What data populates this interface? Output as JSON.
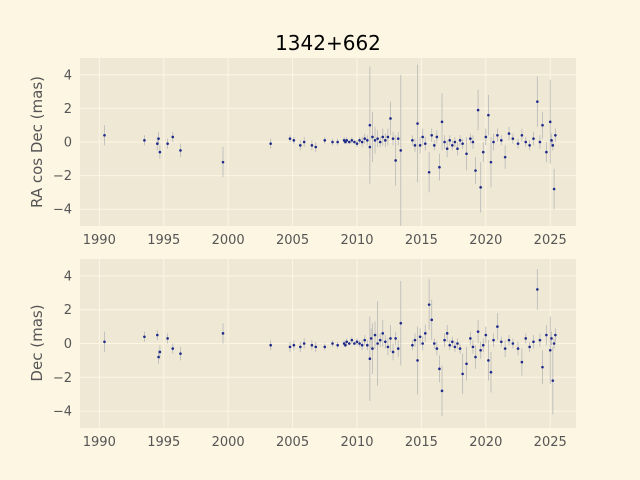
{
  "chart_data": [
    {
      "type": "scatter",
      "title": "1342+662",
      "xlabel": "",
      "ylabel": "RA cos Dec (mas)",
      "xlim": [
        1988.5,
        2027
      ],
      "ylim": [
        -5,
        5
      ],
      "xticks": [
        1990,
        1995,
        2000,
        2005,
        2010,
        2015,
        2020,
        2025
      ],
      "yticks": [
        -4,
        -2,
        0,
        2,
        4
      ],
      "grid": true,
      "marker_color": "#1f2a8a",
      "errorbar_color": "#b8b8b8",
      "series": [
        {
          "points": [
            [
              1990.4,
              0.4,
              0.6
            ],
            [
              1993.5,
              0.1,
              0.3
            ],
            [
              1994.5,
              -0.1,
              0.4
            ],
            [
              1994.6,
              0.2,
              0.4
            ],
            [
              1994.7,
              -0.6,
              0.4
            ],
            [
              1995.3,
              -0.1,
              0.3
            ],
            [
              1995.7,
              0.3,
              0.3
            ],
            [
              1996.3,
              -0.5,
              0.4
            ],
            [
              1999.6,
              -1.2,
              0.9
            ],
            [
              2003.3,
              -0.1,
              0.3
            ],
            [
              2004.8,
              0.2,
              0.2
            ],
            [
              2005.1,
              0.1,
              0.2
            ],
            [
              2005.6,
              -0.2,
              0.3
            ],
            [
              2005.9,
              0.0,
              0.3
            ],
            [
              2006.5,
              -0.2,
              0.3
            ],
            [
              2006.8,
              -0.3,
              0.3
            ],
            [
              2007.5,
              0.1,
              0.2
            ],
            [
              2008.1,
              0.0,
              0.2
            ],
            [
              2008.5,
              0.0,
              0.2
            ],
            [
              2009.0,
              0.1,
              0.2
            ],
            [
              2009.1,
              0.0,
              0.1
            ],
            [
              2009.2,
              0.1,
              0.2
            ],
            [
              2009.4,
              0.0,
              0.1
            ],
            [
              2009.6,
              0.1,
              0.2
            ],
            [
              2009.8,
              0.0,
              0.1
            ],
            [
              2010.0,
              -0.1,
              0.2
            ],
            [
              2010.2,
              0.1,
              0.2
            ],
            [
              2010.4,
              0.0,
              0.3
            ],
            [
              2010.6,
              0.2,
              0.3
            ],
            [
              2010.8,
              0.1,
              0.3
            ],
            [
              2011.0,
              -0.3,
              0.6
            ],
            [
              2011.0,
              1.0,
              3.5
            ],
            [
              2011.2,
              0.3,
              1.5
            ],
            [
              2011.4,
              0.1,
              0.8
            ],
            [
              2011.6,
              0.2,
              0.5
            ],
            [
              2011.8,
              0.0,
              0.3
            ],
            [
              2012.0,
              0.3,
              0.5
            ],
            [
              2012.2,
              0.1,
              0.4
            ],
            [
              2012.4,
              0.3,
              0.5
            ],
            [
              2012.6,
              1.4,
              1.0
            ],
            [
              2012.8,
              0.2,
              0.4
            ],
            [
              2013.0,
              -1.1,
              1.5
            ],
            [
              2013.2,
              0.2,
              0.4
            ],
            [
              2013.4,
              -0.5,
              4.5
            ],
            [
              2014.3,
              0.1,
              0.3
            ],
            [
              2014.5,
              -0.2,
              0.4
            ],
            [
              2014.7,
              1.1,
              3.5
            ],
            [
              2014.9,
              -0.2,
              0.5
            ],
            [
              2015.1,
              0.3,
              0.5
            ],
            [
              2015.3,
              -0.1,
              0.4
            ],
            [
              2015.6,
              -1.8,
              1.2
            ],
            [
              2015.8,
              0.4,
              0.4
            ],
            [
              2016.0,
              -0.2,
              0.3
            ],
            [
              2016.2,
              0.3,
              0.4
            ],
            [
              2016.4,
              -1.5,
              0.8
            ],
            [
              2016.6,
              1.2,
              1.7
            ],
            [
              2016.8,
              0.0,
              0.4
            ],
            [
              2017.0,
              -0.4,
              0.5
            ],
            [
              2017.2,
              0.1,
              0.3
            ],
            [
              2017.4,
              -0.2,
              0.3
            ],
            [
              2017.6,
              0.0,
              0.3
            ],
            [
              2017.8,
              -0.4,
              0.4
            ],
            [
              2018.0,
              0.1,
              0.3
            ],
            [
              2018.2,
              -0.1,
              0.3
            ],
            [
              2018.5,
              -0.7,
              1.0
            ],
            [
              2018.8,
              0.2,
              0.3
            ],
            [
              2019.0,
              0.0,
              0.4
            ],
            [
              2019.2,
              -1.7,
              0.8
            ],
            [
              2019.4,
              1.9,
              1.2
            ],
            [
              2019.6,
              -2.7,
              1.5
            ],
            [
              2019.8,
              -0.6,
              0.6
            ],
            [
              2020.0,
              0.3,
              0.5
            ],
            [
              2020.2,
              1.6,
              1.2
            ],
            [
              2020.4,
              -1.2,
              1.5
            ],
            [
              2020.6,
              0.0,
              0.5
            ],
            [
              2020.9,
              0.4,
              0.4
            ],
            [
              2021.2,
              0.1,
              0.3
            ],
            [
              2021.5,
              -0.9,
              0.7
            ],
            [
              2021.8,
              0.5,
              0.4
            ],
            [
              2022.1,
              0.2,
              0.3
            ],
            [
              2022.5,
              -0.1,
              0.3
            ],
            [
              2022.8,
              0.4,
              0.4
            ],
            [
              2023.1,
              0.0,
              0.3
            ],
            [
              2023.4,
              -0.2,
              0.3
            ],
            [
              2023.7,
              0.2,
              0.4
            ],
            [
              2024.0,
              2.4,
              1.5
            ],
            [
              2024.2,
              0.0,
              0.4
            ],
            [
              2024.4,
              1.0,
              0.8
            ],
            [
              2024.7,
              -0.6,
              0.6
            ],
            [
              2025.0,
              1.2,
              2.5
            ],
            [
              2025.1,
              0.1,
              0.4
            ],
            [
              2025.2,
              -0.2,
              0.3
            ],
            [
              2025.3,
              -2.8,
              1.2
            ],
            [
              2025.4,
              0.4,
              0.4
            ]
          ]
        }
      ]
    },
    {
      "type": "scatter",
      "title": "",
      "xlabel": "",
      "ylabel": "Dec (mas)",
      "xlim": [
        1988.5,
        2027
      ],
      "ylim": [
        -5,
        5
      ],
      "xticks": [
        1990,
        1995,
        2000,
        2005,
        2010,
        2015,
        2020,
        2025
      ],
      "yticks": [
        -4,
        -2,
        0,
        2,
        4
      ],
      "grid": true,
      "marker_color": "#1f2a8a",
      "errorbar_color": "#b8b8b8",
      "series": [
        {
          "points": [
            [
              1990.4,
              0.1,
              0.6
            ],
            [
              1993.5,
              0.4,
              0.3
            ],
            [
              1994.5,
              0.5,
              0.3
            ],
            [
              1994.6,
              -0.8,
              0.4
            ],
            [
              1994.7,
              -0.5,
              0.4
            ],
            [
              1995.3,
              0.3,
              0.3
            ],
            [
              1995.7,
              -0.3,
              0.3
            ],
            [
              1996.3,
              -0.6,
              0.4
            ],
            [
              1999.6,
              0.6,
              0.6
            ],
            [
              2003.3,
              -0.1,
              0.3
            ],
            [
              2004.8,
              -0.2,
              0.3
            ],
            [
              2005.1,
              -0.1,
              0.3
            ],
            [
              2005.6,
              -0.2,
              0.3
            ],
            [
              2005.9,
              0.0,
              0.3
            ],
            [
              2006.5,
              -0.1,
              0.3
            ],
            [
              2006.8,
              -0.2,
              0.3
            ],
            [
              2007.5,
              -0.2,
              0.2
            ],
            [
              2008.1,
              0.0,
              0.2
            ],
            [
              2008.5,
              -0.1,
              0.2
            ],
            [
              2009.0,
              0.0,
              0.2
            ],
            [
              2009.1,
              -0.1,
              0.1
            ],
            [
              2009.2,
              0.1,
              0.2
            ],
            [
              2009.4,
              0.0,
              0.1
            ],
            [
              2009.6,
              0.2,
              0.2
            ],
            [
              2009.8,
              0.0,
              0.1
            ],
            [
              2010.0,
              0.1,
              0.2
            ],
            [
              2010.2,
              0.0,
              0.2
            ],
            [
              2010.4,
              -0.1,
              0.3
            ],
            [
              2010.6,
              0.2,
              0.3
            ],
            [
              2010.8,
              -0.1,
              0.3
            ],
            [
              2011.0,
              -0.9,
              2.5
            ],
            [
              2011.1,
              0.3,
              0.6
            ],
            [
              2011.2,
              -0.3,
              1.5
            ],
            [
              2011.4,
              0.5,
              0.8
            ],
            [
              2011.6,
              0.0,
              2.5
            ],
            [
              2011.8,
              0.2,
              0.4
            ],
            [
              2012.0,
              0.6,
              0.8
            ],
            [
              2012.2,
              0.1,
              0.4
            ],
            [
              2012.4,
              -0.2,
              0.5
            ],
            [
              2012.6,
              0.3,
              0.8
            ],
            [
              2012.8,
              -0.5,
              0.5
            ],
            [
              2013.0,
              0.3,
              0.4
            ],
            [
              2013.2,
              -0.3,
              0.5
            ],
            [
              2013.4,
              1.2,
              2.5
            ],
            [
              2014.3,
              -0.1,
              0.3
            ],
            [
              2014.5,
              0.2,
              0.4
            ],
            [
              2014.7,
              -1.0,
              2.0
            ],
            [
              2014.9,
              0.4,
              0.5
            ],
            [
              2015.1,
              0.0,
              0.4
            ],
            [
              2015.3,
              0.6,
              0.5
            ],
            [
              2015.6,
              2.3,
              1.5
            ],
            [
              2015.8,
              1.4,
              1.2
            ],
            [
              2016.0,
              0.0,
              0.3
            ],
            [
              2016.2,
              -0.3,
              0.4
            ],
            [
              2016.4,
              -1.5,
              0.8
            ],
            [
              2016.6,
              -2.8,
              1.5
            ],
            [
              2016.8,
              0.2,
              0.4
            ],
            [
              2017.0,
              0.6,
              0.5
            ],
            [
              2017.2,
              -0.1,
              0.3
            ],
            [
              2017.4,
              0.1,
              0.3
            ],
            [
              2017.6,
              -0.2,
              0.3
            ],
            [
              2017.8,
              0.0,
              0.3
            ],
            [
              2018.0,
              -0.3,
              0.3
            ],
            [
              2018.2,
              -1.8,
              1.2
            ],
            [
              2018.5,
              -1.2,
              1.0
            ],
            [
              2018.8,
              0.3,
              0.4
            ],
            [
              2019.0,
              -0.2,
              0.4
            ],
            [
              2019.2,
              -0.8,
              0.7
            ],
            [
              2019.4,
              0.7,
              0.7
            ],
            [
              2019.6,
              -0.4,
              0.5
            ],
            [
              2019.8,
              -0.1,
              0.4
            ],
            [
              2020.0,
              0.5,
              0.5
            ],
            [
              2020.2,
              -1.0,
              1.2
            ],
            [
              2020.4,
              -1.7,
              1.2
            ],
            [
              2020.6,
              0.2,
              0.4
            ],
            [
              2020.9,
              1.0,
              0.8
            ],
            [
              2021.2,
              0.1,
              0.3
            ],
            [
              2021.5,
              -0.3,
              0.5
            ],
            [
              2021.8,
              0.2,
              0.3
            ],
            [
              2022.1,
              0.0,
              0.3
            ],
            [
              2022.5,
              -0.3,
              0.4
            ],
            [
              2022.8,
              -1.1,
              0.8
            ],
            [
              2023.1,
              0.3,
              0.3
            ],
            [
              2023.4,
              -0.2,
              0.3
            ],
            [
              2023.7,
              0.1,
              0.4
            ],
            [
              2024.0,
              3.2,
              1.2
            ],
            [
              2024.2,
              0.2,
              0.4
            ],
            [
              2024.4,
              -1.4,
              1.0
            ],
            [
              2024.7,
              0.5,
              0.6
            ],
            [
              2025.0,
              -0.4,
              2.0
            ],
            [
              2025.1,
              0.3,
              0.4
            ],
            [
              2025.2,
              -2.2,
              2.0
            ],
            [
              2025.3,
              0.0,
              0.3
            ],
            [
              2025.4,
              0.5,
              0.4
            ]
          ]
        }
      ]
    }
  ]
}
